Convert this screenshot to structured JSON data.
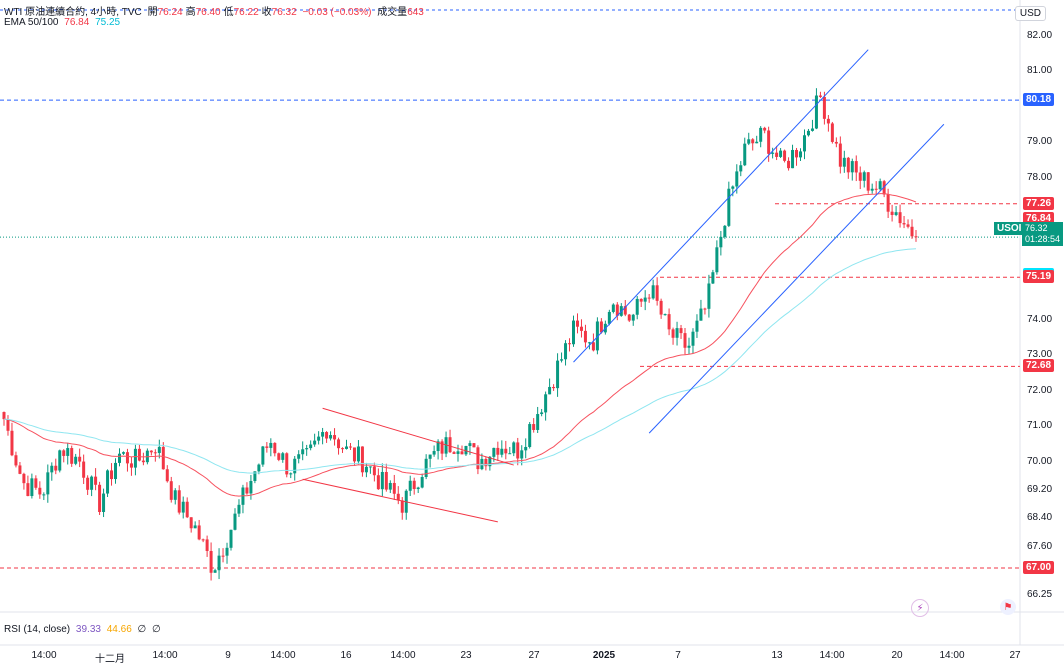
{
  "header": {
    "symbol_line": "WTI 原油連續合約, 4小時, TVC",
    "ohlc": [
      {
        "label": "開",
        "value": "76.24"
      },
      {
        "label": "高",
        "value": "76.40"
      },
      {
        "label": "低",
        "value": "76.22"
      },
      {
        "label": "收",
        "value": "76.32"
      }
    ],
    "change": "−0.03 (−0.03%)",
    "volume_label": "成交量",
    "volume_value": "643",
    "ema_label": "EMA 50/100",
    "ema50_value": "76.84",
    "ema100_value": "75.25",
    "rsi_label": "RSI (14, close)",
    "rsi_value": "39.33",
    "rsi_ma_value": "44.66",
    "rsi_extra1": "∅",
    "rsi_extra2": "∅"
  },
  "currency": "USD",
  "y_axis_ticks": [
    "82.00",
    "81.00",
    "79.00",
    "78.00",
    "74.00",
    "73.00",
    "72.00",
    "71.00",
    "70.00",
    "69.20",
    "68.40",
    "67.60",
    "66.25"
  ],
  "x_axis_ticks": [
    "14:00",
    "十二月",
    "14:00",
    "9",
    "14:00",
    "16",
    "14:00",
    "23",
    "27",
    "2025",
    "7",
    "13",
    "14:00",
    "20",
    "14:00",
    "27"
  ],
  "price_labels": [
    {
      "value": "80.18",
      "color": "#2962ff"
    },
    {
      "value": "77.26",
      "color": "#f23645"
    },
    {
      "value": "76.84",
      "color": "#f23645"
    },
    {
      "value": "75.25",
      "color": "#00e5ff"
    },
    {
      "value": "75.19",
      "color": "#f23645"
    },
    {
      "value": "72.68",
      "color": "#f23645"
    },
    {
      "value": "67.00",
      "color": "#f23645"
    }
  ],
  "current": {
    "symbol": "USOIL",
    "price": "76.32",
    "countdown": "01:28:54"
  },
  "colors": {
    "up": "#089981",
    "down": "#f23645",
    "ema50": "#f7525f",
    "ema100": "#8fe6f0",
    "channel": "#2962ff",
    "wedge": "#f23645"
  },
  "icons": [
    "flash-icon",
    "flag-icon"
  ],
  "chart_data": {
    "type": "candlestick",
    "title": "WTI 原油連續合約, 4小時, TVC",
    "ylim": [
      66.0,
      82.4
    ],
    "x_ticks": [
      "14:00",
      "十二月",
      "14:00",
      "9",
      "14:00",
      "16",
      "14:00",
      "23",
      "27",
      "2025",
      "7",
      "13",
      "14:00",
      "20",
      "14:00",
      "27"
    ],
    "horizontal_levels": [
      80.18,
      77.26,
      75.19,
      72.68,
      67.0
    ],
    "series": [
      {
        "name": "WTI",
        "type": "ohlc",
        "anchor_closes": [
          71.2,
          69.4,
          69.1,
          70.4,
          70.0,
          68.8,
          70.2,
          70.0,
          70.5,
          68.9,
          68.2,
          67.0,
          68.2,
          69.5,
          70.6,
          69.8,
          70.1,
          71.0,
          70.3,
          70.0,
          69.3,
          68.8,
          69.8,
          70.4,
          70.6,
          70.0,
          70.5,
          70.3,
          71.3,
          72.5,
          73.7,
          73.4,
          74.6,
          74.0,
          74.9,
          73.6,
          73.2,
          74.4,
          77.1,
          78.8,
          79.2,
          78.3,
          79.0,
          80.3,
          78.5,
          78.0,
          77.7,
          77.0,
          76.32
        ]
      },
      {
        "name": "EMA 50",
        "values_end": 76.84
      },
      {
        "name": "EMA 100",
        "values_end": 75.25
      },
      {
        "name": "RSI (14, close)",
        "values_end": 39.33
      }
    ]
  }
}
